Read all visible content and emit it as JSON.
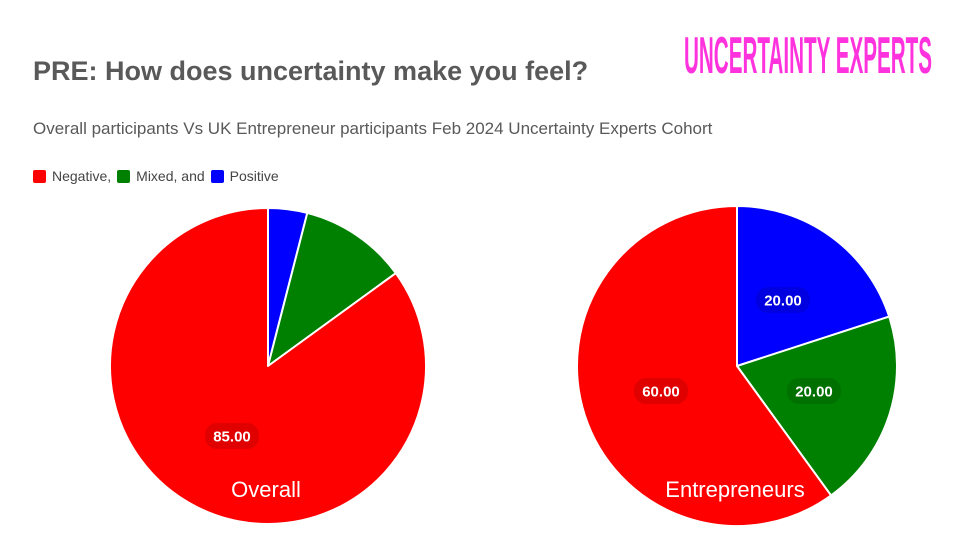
{
  "slide": {
    "title": "PRE: How does uncertainty make you feel?",
    "subtitle": "Overall participants Vs UK Entrepreneur participants Feb 2024 Uncertainty Experts Cohort",
    "brand": "UNCERTAINTY EXPERTS",
    "brand_color": "#ff33dd"
  },
  "legend": {
    "items": [
      {
        "label": "Negative,",
        "color": "#ff0000"
      },
      {
        "label": "Mixed, and",
        "color": "#008000"
      },
      {
        "label": "Positive",
        "color": "#0000ff"
      }
    ]
  },
  "chart_data": [
    {
      "type": "pie",
      "title": "Overall",
      "legend": "top-left",
      "start": "12 o'clock, clockwise",
      "categories": [
        "Positive",
        "Mixed",
        "Negative"
      ],
      "values": [
        4,
        11,
        85
      ],
      "data_labels": [
        "",
        "",
        "85.00"
      ],
      "colors": [
        "#0000ff",
        "#008000",
        "#ff0000"
      ]
    },
    {
      "type": "pie",
      "title": "Entrepreneurs",
      "legend": "top-left",
      "start": "12 o'clock, clockwise",
      "categories": [
        "Positive",
        "Mixed",
        "Negative"
      ],
      "values": [
        20,
        20,
        60
      ],
      "data_labels": [
        "20.00",
        "20.00",
        "60.00"
      ],
      "colors": [
        "#0000ff",
        "#008000",
        "#ff0000"
      ]
    }
  ]
}
